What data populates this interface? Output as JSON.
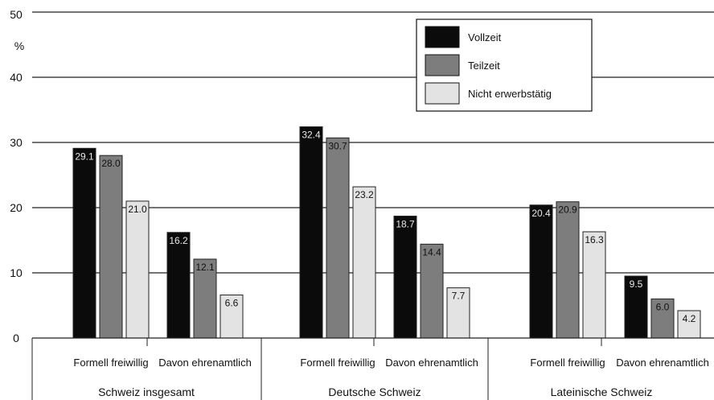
{
  "colors": {
    "Vollzeit": "#0b0b0b",
    "Teilzeit": "#7d7d7d",
    "Nicht erwerbstätig": "#e3e3e3"
  },
  "chart_data": {
    "type": "bar",
    "ylabel": "%",
    "ylim": [
      0,
      50
    ],
    "yticks": [
      0,
      10,
      20,
      30,
      40,
      50
    ],
    "grid": true,
    "legend_position": "top-center",
    "groups": [
      "Schweiz insgesamt",
      "Deutsche Schweiz",
      "Lateinische Schweiz"
    ],
    "categories": [
      "Formell freiwillig",
      "Davon ehrenamtlich",
      "Formell freiwillig",
      "Davon ehrenamtlich",
      "Formell freiwillig",
      "Davon ehrenamtlich"
    ],
    "series": [
      {
        "name": "Vollzeit",
        "values": [
          29.1,
          16.2,
          32.4,
          18.7,
          20.4,
          9.5
        ]
      },
      {
        "name": "Teilzeit",
        "values": [
          28.0,
          12.1,
          30.7,
          14.4,
          20.9,
          6.0
        ]
      },
      {
        "name": "Nicht erwerbstätig",
        "values": [
          21.0,
          6.6,
          23.2,
          7.7,
          16.3,
          4.2
        ]
      }
    ],
    "value_labels": [
      [
        "29.1",
        "16.2",
        "32.4",
        "18.7",
        "20.4",
        "9.5"
      ],
      [
        "28.0",
        "12.1",
        "30.7",
        "14.4",
        "20.9",
        "6.0"
      ],
      [
        "21.0",
        "6.6",
        "23.2",
        "7.7",
        "16.3",
        "4.2"
      ]
    ]
  }
}
